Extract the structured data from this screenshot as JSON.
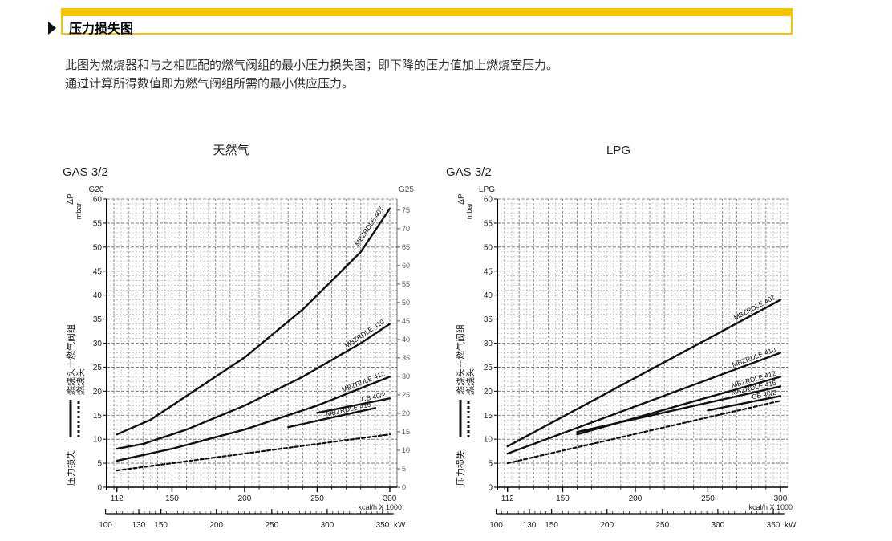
{
  "header": {
    "title": "压力损失图"
  },
  "intro": {
    "line1": "此图为燃烧器和与之相匹配的燃气阀组的最小压力损失图；即下降的压力值加上燃烧室压力。",
    "line2": "通过计算所得数值即为燃气阀组所需的最小供应压力。"
  },
  "legend": {
    "axis_title": "压力损失",
    "solid_label": "燃烧头＋燃气阀组",
    "dashed_label": "燃烧头"
  },
  "chart_data": [
    {
      "type": "line",
      "title": "天然气",
      "model": "GAS 3/2",
      "ylabel": "ΔP",
      "yunit": "mbar",
      "ylabel_left": "G20",
      "ylabel_right": "G25",
      "ylim": [
        0,
        60
      ],
      "yticks": [
        0,
        5,
        10,
        15,
        20,
        25,
        30,
        35,
        40,
        45,
        50,
        55,
        60
      ],
      "ylim_right": [
        0,
        78
      ],
      "yticks_right": [
        0,
        5,
        10,
        15,
        20,
        25,
        30,
        35,
        40,
        45,
        50,
        55,
        60,
        65,
        70,
        75
      ],
      "xlabel": "kcal/h X 1000",
      "xlim": [
        105,
        305
      ],
      "xticks": [
        112,
        150,
        200,
        250,
        300
      ],
      "xlabel2": "kW",
      "xticks2": [
        100,
        130,
        150,
        200,
        250,
        300,
        350
      ],
      "grid": true,
      "series": [
        {
          "name": "MBZRDLE 407",
          "style": "solid",
          "x": [
            112,
            135,
            165,
            200,
            240,
            280,
            300
          ],
          "y": [
            11,
            14,
            20,
            27,
            37,
            49,
            58
          ]
        },
        {
          "name": "MBZRDLE 410",
          "style": "solid",
          "x": [
            112,
            130,
            160,
            200,
            240,
            280,
            300
          ],
          "y": [
            8,
            9,
            12,
            17,
            23,
            30,
            34
          ]
        },
        {
          "name": "MBZRDLE 412",
          "style": "solid",
          "x": [
            112,
            150,
            200,
            250,
            300
          ],
          "y": [
            5.5,
            8,
            12,
            17,
            23
          ]
        },
        {
          "name": "MBZRDLE 415",
          "style": "solid",
          "x": [
            230,
            260,
            290
          ],
          "y": [
            12.5,
            14.5,
            16.5
          ]
        },
        {
          "name": "CB 40/2",
          "style": "solid",
          "x": [
            250,
            275,
            300
          ],
          "y": [
            15.5,
            17,
            18.5
          ]
        },
        {
          "name": "",
          "style": "dashed",
          "x": [
            112,
            150,
            200,
            250,
            300
          ],
          "y": [
            3.5,
            5,
            7,
            9,
            11
          ]
        }
      ]
    },
    {
      "type": "line",
      "title": "LPG",
      "model": "GAS 3/2",
      "ylabel": "ΔP",
      "yunit": "mbar",
      "ylabel_left": "LPG",
      "ylim": [
        0,
        60
      ],
      "yticks": [
        0,
        5,
        10,
        15,
        20,
        25,
        30,
        35,
        40,
        45,
        50,
        55,
        60
      ],
      "xlabel": "kcal/h X 1000",
      "xlim": [
        105,
        305
      ],
      "xticks": [
        112,
        150,
        200,
        250,
        300
      ],
      "xlabel2": "kW",
      "xticks2": [
        100,
        130,
        150,
        200,
        250,
        300,
        350
      ],
      "grid": true,
      "series": [
        {
          "name": "MBZRDLE 407",
          "style": "solid",
          "x": [
            112,
            300
          ],
          "y": [
            8.5,
            39
          ]
        },
        {
          "name": "MBZRDLE 410",
          "style": "solid",
          "x": [
            112,
            300
          ],
          "y": [
            7,
            28
          ]
        },
        {
          "name": "MBZRDLE 412",
          "style": "solid",
          "x": [
            160,
            300
          ],
          "y": [
            11,
            23
          ]
        },
        {
          "name": "MBZRDLE 415",
          "style": "solid",
          "x": [
            160,
            300
          ],
          "y": [
            11.5,
            21
          ]
        },
        {
          "name": "CB 40/2",
          "style": "solid",
          "x": [
            250,
            300
          ],
          "y": [
            16,
            19
          ]
        },
        {
          "name": "",
          "style": "dashed",
          "x": [
            112,
            300
          ],
          "y": [
            5,
            18
          ]
        }
      ]
    }
  ]
}
